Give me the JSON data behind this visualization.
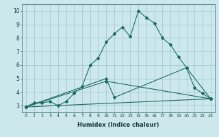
{
  "background_color": "#cce8ec",
  "grid_color": "#aacdd4",
  "line_color": "#1a6b60",
  "xlabel": "Humidex (Indice chaleur)",
  "xlim": [
    -0.5,
    23.5
  ],
  "ylim": [
    2.5,
    10.5
  ],
  "xticks": [
    0,
    1,
    2,
    3,
    4,
    5,
    6,
    7,
    8,
    9,
    10,
    11,
    12,
    13,
    14,
    15,
    16,
    17,
    18,
    19,
    20,
    21,
    22,
    23
  ],
  "yticks": [
    3,
    4,
    5,
    6,
    7,
    8,
    9,
    10
  ],
  "series": [
    {
      "x": [
        0,
        1,
        2,
        3,
        4,
        5,
        6,
        7,
        8,
        9,
        10,
        11,
        12,
        13,
        14,
        15,
        16,
        17,
        18,
        19,
        20,
        21,
        22,
        23
      ],
      "y": [
        2.9,
        3.2,
        3.2,
        3.3,
        3.0,
        3.3,
        3.9,
        4.4,
        6.0,
        6.5,
        7.7,
        8.3,
        8.8,
        8.1,
        10.0,
        9.5,
        9.1,
        8.0,
        7.5,
        6.6,
        5.8,
        4.3,
        3.9,
        3.5
      ]
    },
    {
      "x": [
        0,
        10,
        11,
        20,
        23
      ],
      "y": [
        2.9,
        5.0,
        3.6,
        5.8,
        3.5
      ]
    },
    {
      "x": [
        0,
        10,
        23
      ],
      "y": [
        2.9,
        4.8,
        3.5
      ]
    },
    {
      "x": [
        0,
        23
      ],
      "y": [
        2.9,
        3.5
      ]
    }
  ]
}
